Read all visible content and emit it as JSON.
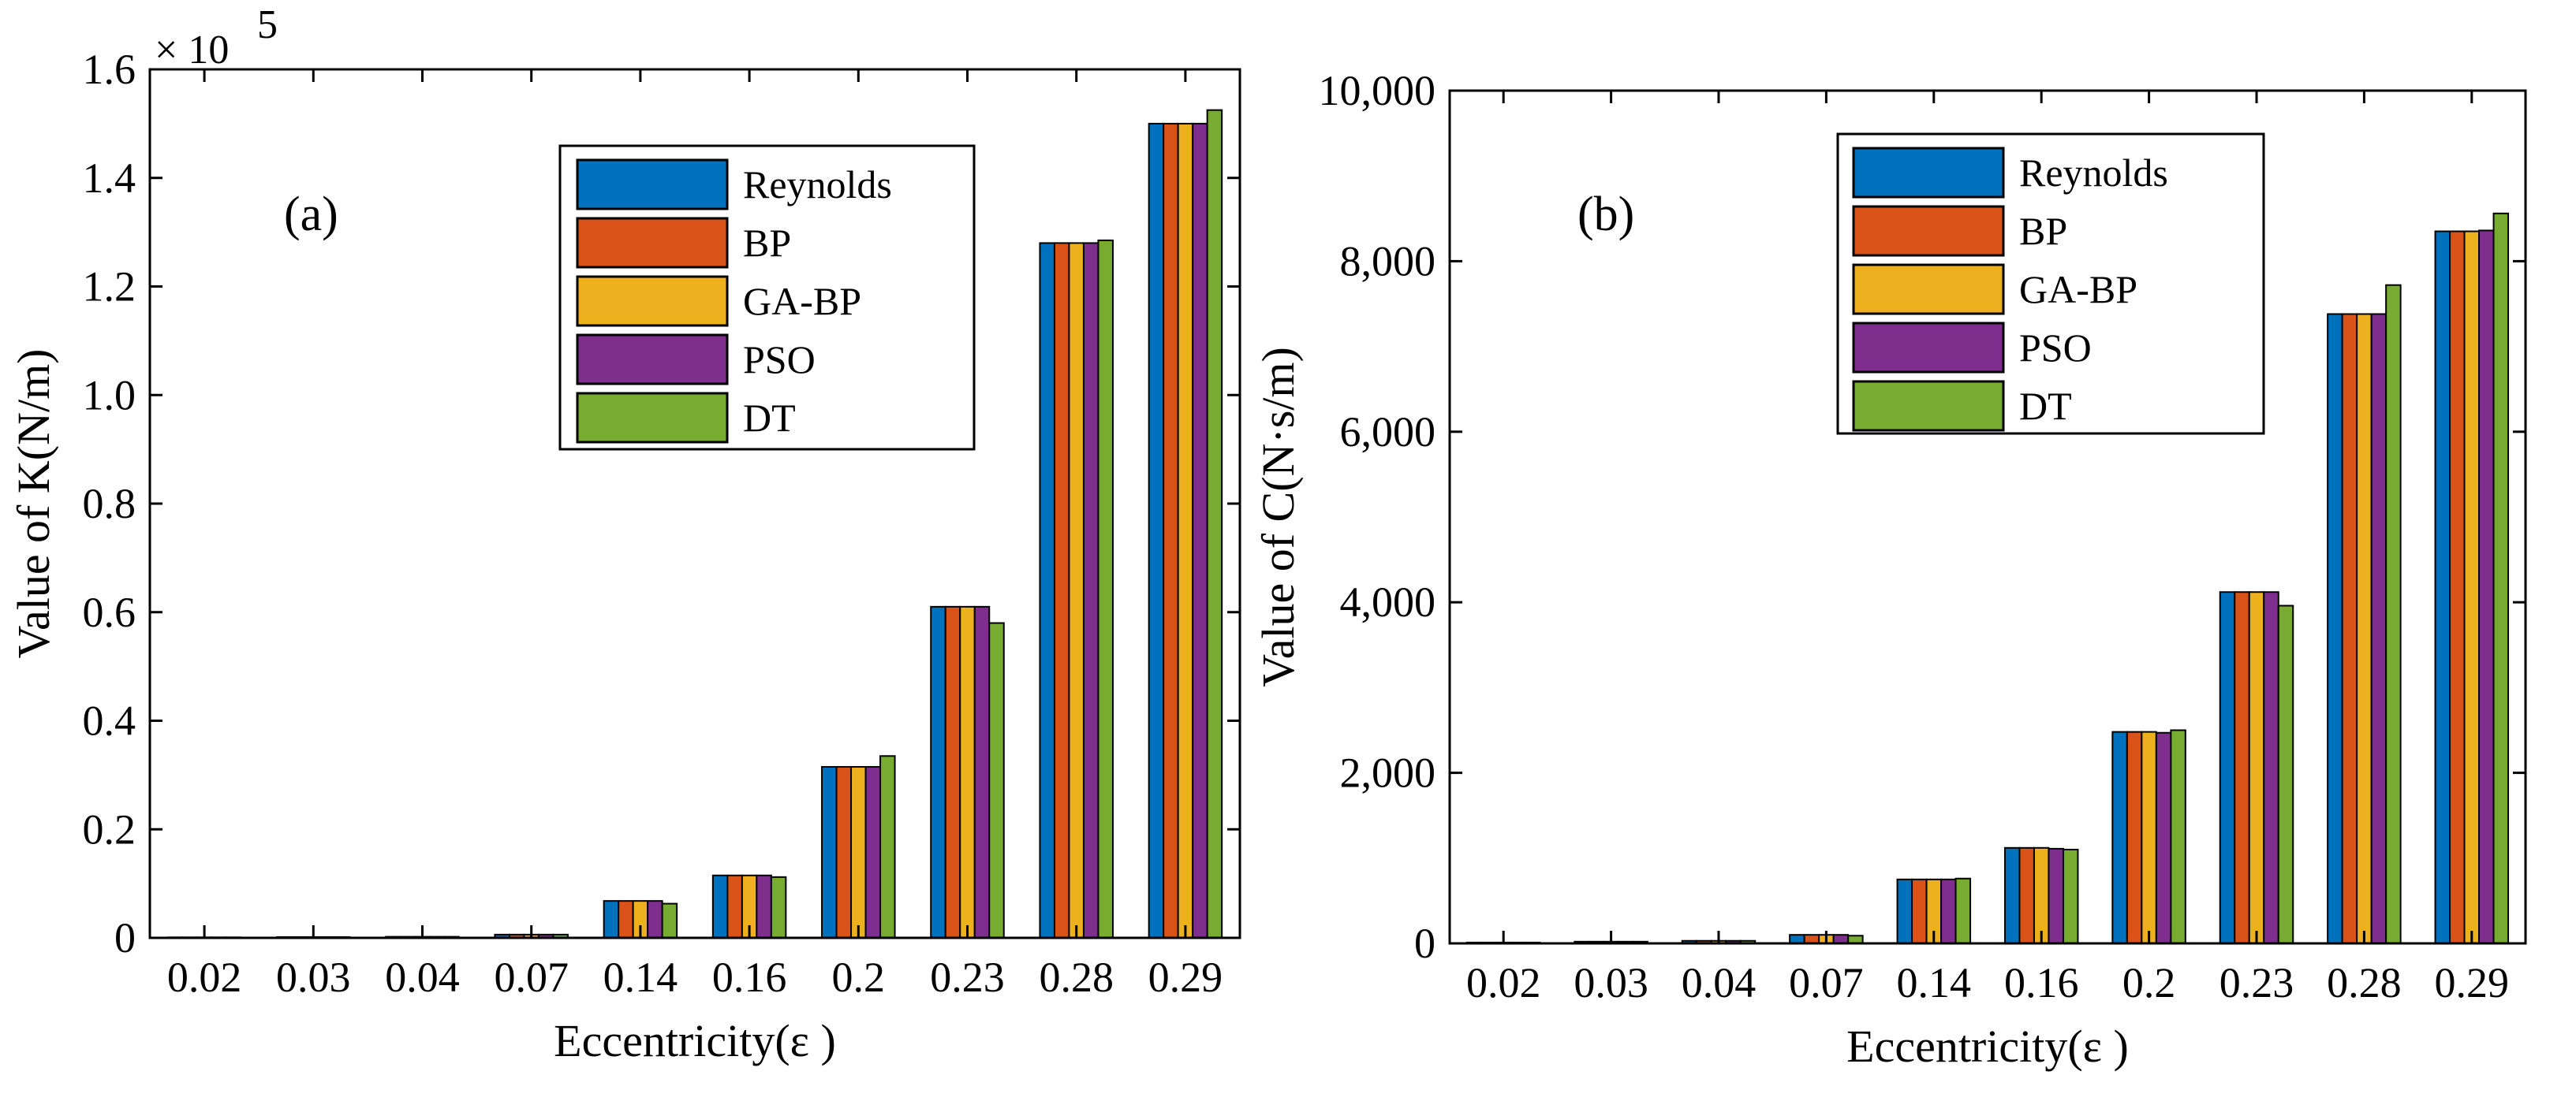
{
  "chart_data": [
    {
      "type": "bar",
      "panel_label": "(a)",
      "title": "",
      "xlabel": "Eccentricity(ε )",
      "ylabel": "Value of K(N/m)",
      "y_multiplier": "× 10",
      "y_multiplier_exponent": "5",
      "ylim": [
        0,
        160000
      ],
      "yticks": [
        0,
        20000,
        40000,
        60000,
        80000,
        100000,
        120000,
        140000,
        160000
      ],
      "ytick_labels": [
        "0",
        "0.2",
        "0.4",
        "0.6",
        "0.8",
        "1.0",
        "1.2",
        "1.4",
        "1.6"
      ],
      "categories": [
        "0.02",
        "0.03",
        "0.04",
        "0.07",
        "0.14",
        "0.16",
        "0.2",
        "0.23",
        "0.28",
        "0.29"
      ],
      "legend_position": "top-right",
      "grid": false,
      "series": [
        {
          "name": "Reynolds",
          "color": "#0072BD",
          "values": [
            100,
            150,
            200,
            600,
            6800,
            11500,
            31500,
            61000,
            128000,
            150000
          ]
        },
        {
          "name": "BP",
          "color": "#D95319",
          "values": [
            100,
            150,
            200,
            600,
            6800,
            11500,
            31500,
            61000,
            128000,
            150000
          ]
        },
        {
          "name": "GA-BP",
          "color": "#EDB120",
          "values": [
            100,
            150,
            200,
            600,
            6800,
            11500,
            31500,
            61000,
            128000,
            150000
          ]
        },
        {
          "name": "PSO",
          "color": "#7E2F8E",
          "values": [
            100,
            150,
            200,
            600,
            6800,
            11500,
            31500,
            61000,
            128000,
            150000
          ]
        },
        {
          "name": "DT",
          "color": "#77AC30",
          "values": [
            100,
            150,
            200,
            600,
            6300,
            11200,
            33500,
            58000,
            128500,
            152500
          ]
        }
      ]
    },
    {
      "type": "bar",
      "panel_label": "(b)",
      "title": "",
      "xlabel": "Eccentricity(ε )",
      "ylabel": "Value of C(N·s/m)",
      "ylim": [
        0,
        10000
      ],
      "yticks": [
        0,
        2000,
        4000,
        6000,
        8000,
        10000
      ],
      "ytick_labels": [
        "0",
        "2,000",
        "4,000",
        "6,000",
        "8,000",
        "10,000"
      ],
      "categories": [
        "0.02",
        "0.03",
        "0.04",
        "0.07",
        "0.14",
        "0.16",
        "0.2",
        "0.23",
        "0.28",
        "0.29"
      ],
      "legend_position": "top-right",
      "grid": false,
      "series": [
        {
          "name": "Reynolds",
          "color": "#0072BD",
          "values": [
            10,
            20,
            30,
            100,
            750,
            1120,
            2480,
            4120,
            7380,
            8350
          ]
        },
        {
          "name": "BP",
          "color": "#D95319",
          "values": [
            10,
            20,
            30,
            100,
            750,
            1120,
            2480,
            4120,
            7380,
            8350
          ]
        },
        {
          "name": "GA-BP",
          "color": "#EDB120",
          "values": [
            10,
            20,
            30,
            100,
            750,
            1120,
            2480,
            4120,
            7380,
            8350
          ]
        },
        {
          "name": "PSO",
          "color": "#7E2F8E",
          "values": [
            10,
            20,
            30,
            100,
            750,
            1110,
            2470,
            4120,
            7380,
            8360
          ]
        },
        {
          "name": "DT",
          "color": "#77AC30",
          "values": [
            10,
            20,
            30,
            90,
            760,
            1100,
            2500,
            3960,
            7720,
            8560
          ]
        }
      ]
    }
  ]
}
